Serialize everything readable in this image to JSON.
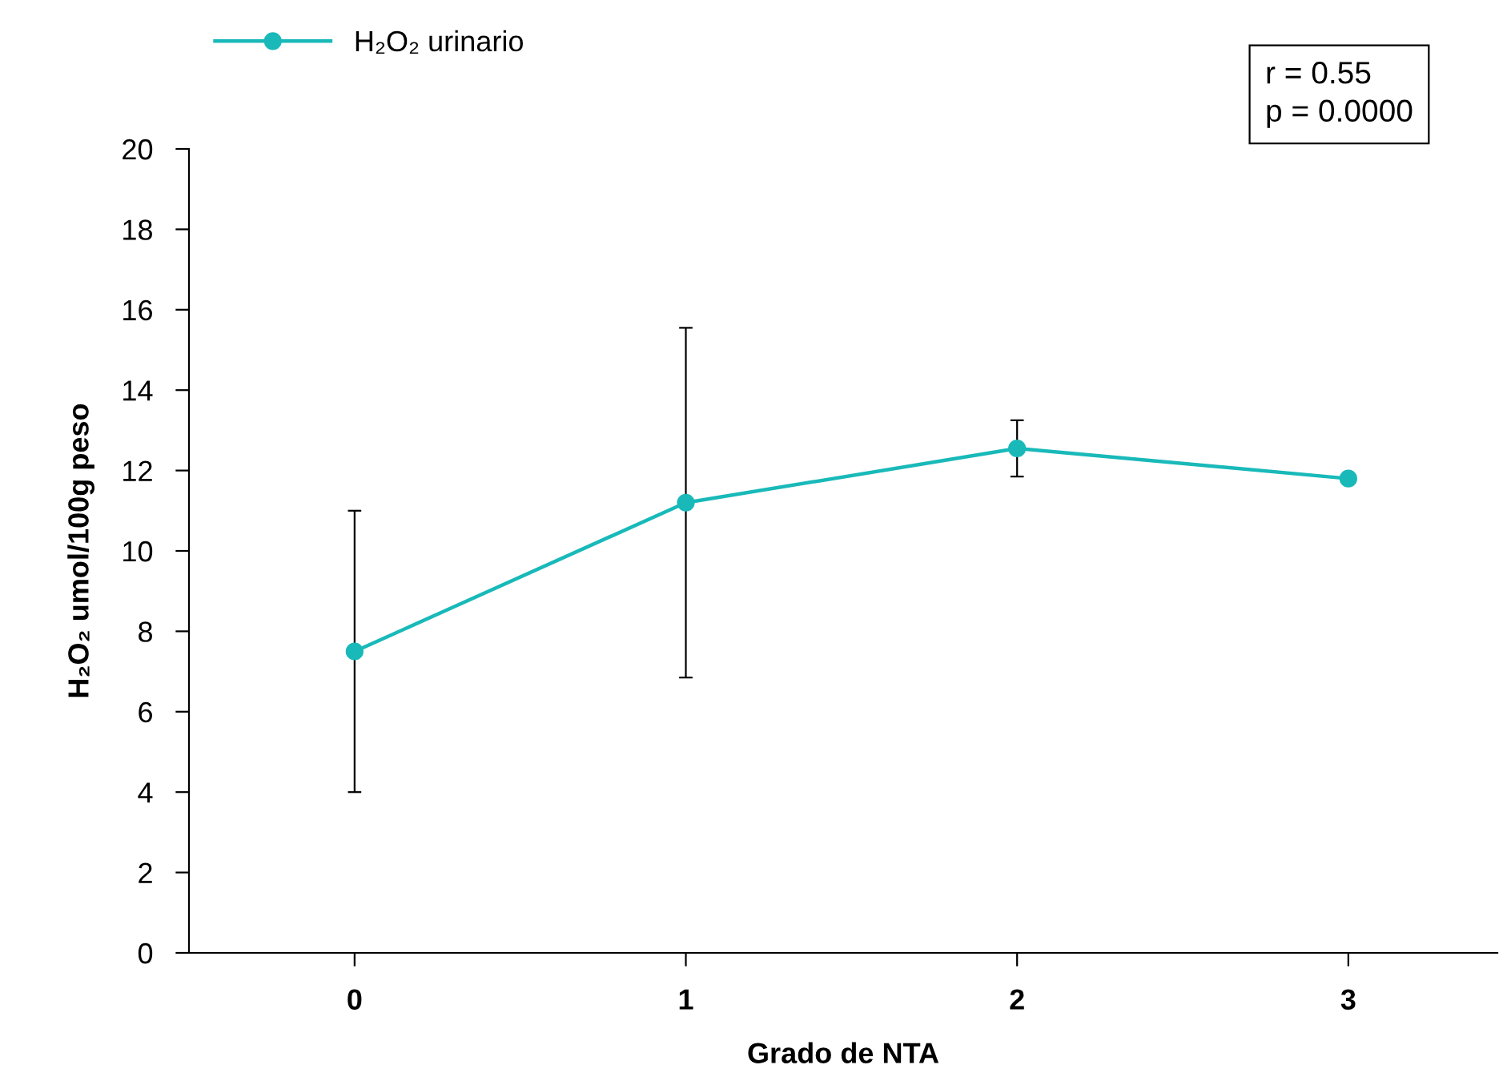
{
  "chart_data": {
    "type": "line",
    "xlabel": "Grado de NTA",
    "ylabel": "H₂O₂ umol/100g peso",
    "x": [
      0,
      1,
      2,
      3
    ],
    "series": [
      {
        "name": "H₂O₂ urinario",
        "color": "#19b9b9",
        "values": [
          7.5,
          11.2,
          12.55,
          11.8
        ],
        "errors": [
          3.5,
          4.35,
          0.7,
          null
        ]
      }
    ],
    "xlim": [
      -0.5,
      3.45
    ],
    "xticks": [
      0,
      1,
      2,
      3
    ],
    "ylim": [
      0,
      20
    ],
    "yticks": [
      0,
      2,
      4,
      6,
      8,
      10,
      12,
      14,
      16,
      18,
      20
    ],
    "marker": "circle",
    "line_style": "solid",
    "grid": false,
    "legend": "top left",
    "annotations": [
      "r = 0.55\np = 0.0000"
    ]
  }
}
